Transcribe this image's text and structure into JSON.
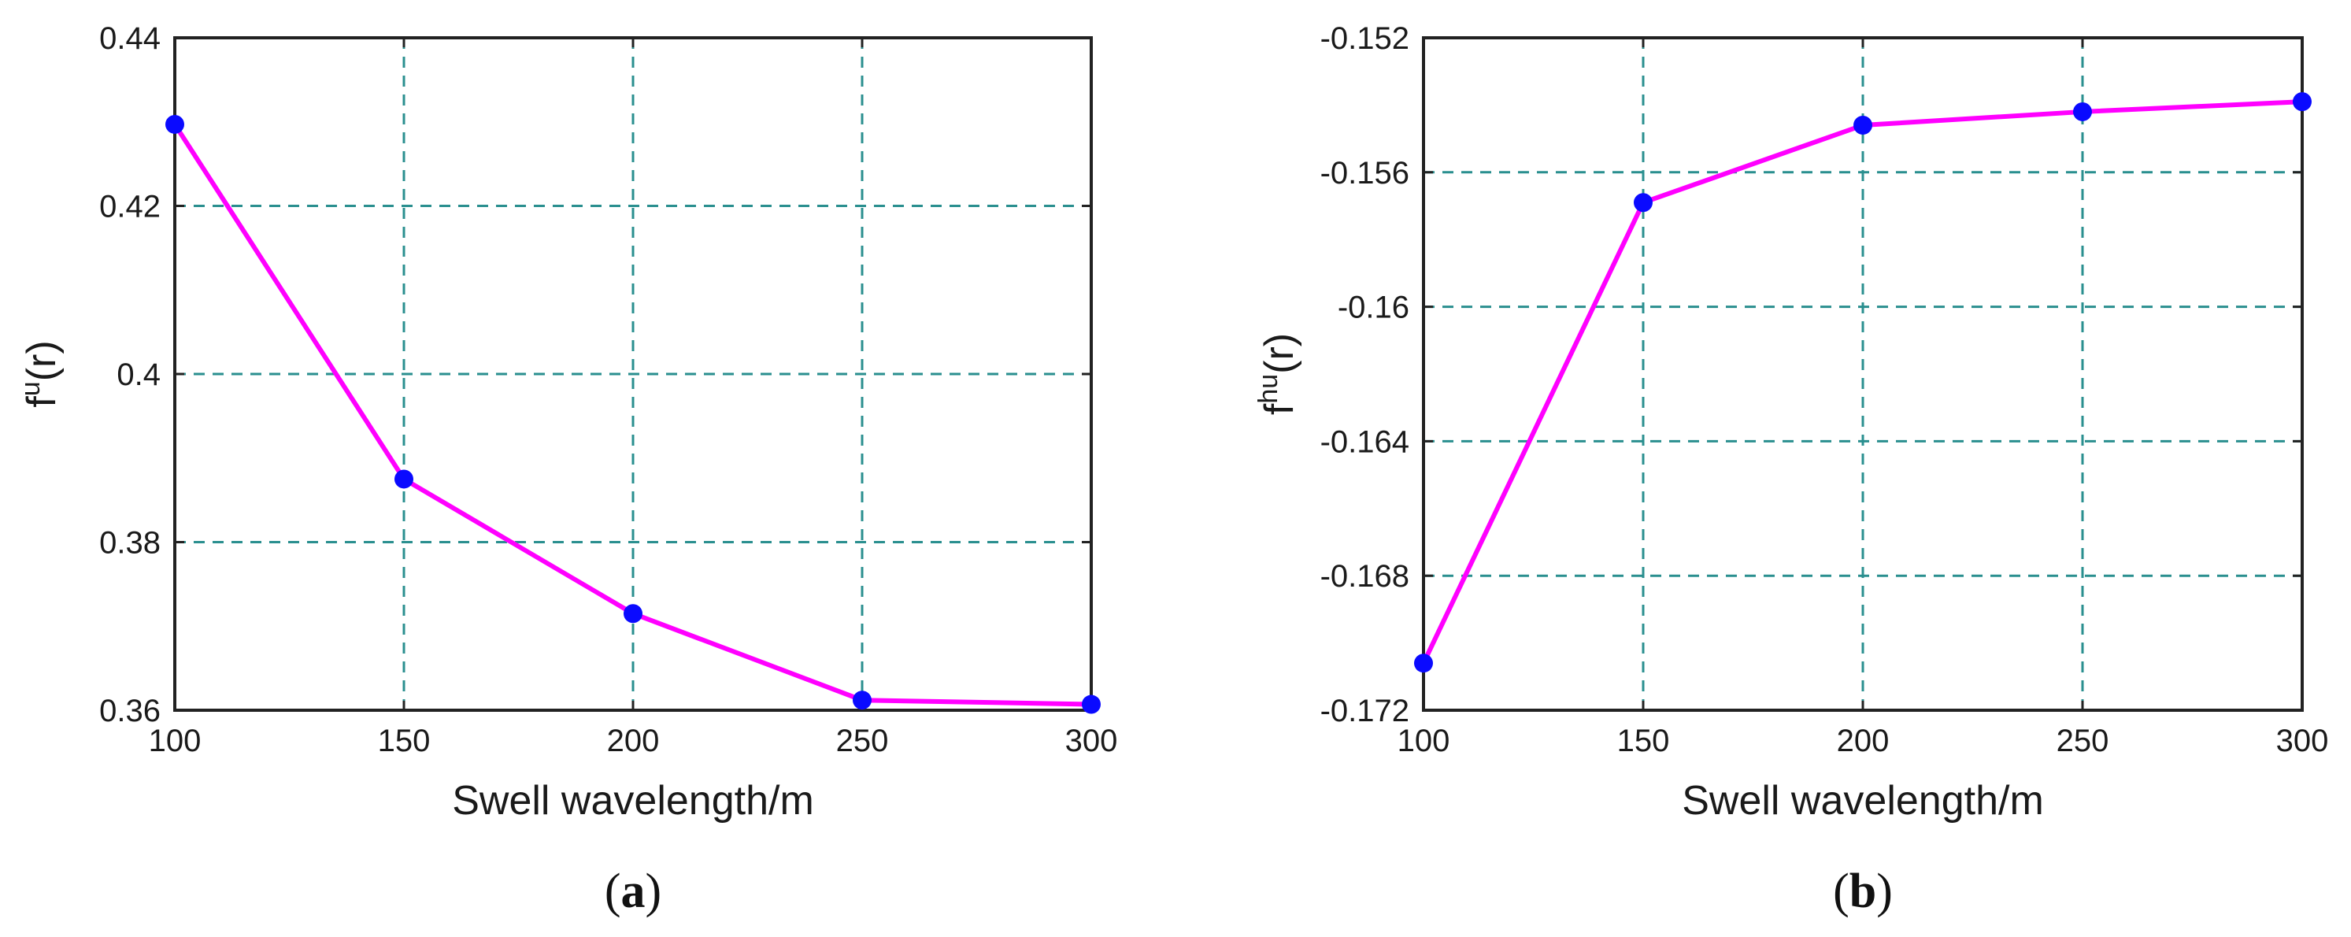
{
  "chart_data": [
    {
      "type": "line",
      "panel_label": "a",
      "xlabel": "Swell wavelength/m",
      "ylabel": {
        "base": "f",
        "sup": "u",
        "rest": "(r)"
      },
      "x": [
        100,
        150,
        200,
        250,
        300
      ],
      "series": [
        {
          "values": [
            0.4297,
            0.3875,
            0.3715,
            0.3612,
            0.3607
          ],
          "color": "#ff00ff",
          "marker_color": "#0a0aff"
        }
      ],
      "xlim": [
        100,
        300
      ],
      "ylim": [
        0.36,
        0.44
      ],
      "xticks": [
        100,
        150,
        200,
        250,
        300
      ],
      "xtick_labels": [
        "100",
        "150",
        "200",
        "250",
        "300"
      ],
      "yticks": [
        0.36,
        0.38,
        0.4,
        0.42,
        0.44
      ],
      "ytick_labels": [
        "0.36",
        "0.38",
        "0.4",
        "0.42",
        "0.44"
      ],
      "grid": true
    },
    {
      "type": "line",
      "panel_label": "b",
      "xlabel": "Swell wavelength/m",
      "ylabel": {
        "base": "f",
        "sup": "hu",
        "rest": "(r)"
      },
      "x": [
        100,
        150,
        200,
        250,
        300
      ],
      "series": [
        {
          "values": [
            -0.1706,
            -0.1569,
            -0.1546,
            -0.1542,
            -0.1539
          ],
          "color": "#ff00ff",
          "marker_color": "#0a0aff"
        }
      ],
      "xlim": [
        100,
        300
      ],
      "ylim": [
        -0.172,
        -0.152
      ],
      "xticks": [
        100,
        150,
        200,
        250,
        300
      ],
      "xtick_labels": [
        "100",
        "150",
        "200",
        "250",
        "300"
      ],
      "yticks": [
        -0.172,
        -0.168,
        -0.164,
        -0.16,
        -0.156,
        -0.152
      ],
      "ytick_labels": [
        "-0.172",
        "-0.168",
        "-0.164",
        "-0.16",
        "-0.156",
        "-0.152"
      ],
      "grid": true
    }
  ]
}
